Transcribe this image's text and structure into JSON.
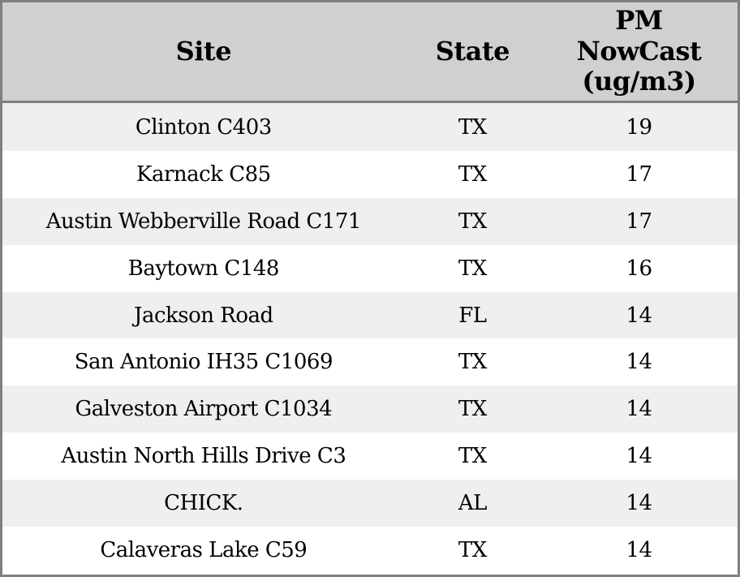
{
  "table": {
    "columns": [
      {
        "id": "site",
        "label": "Site"
      },
      {
        "id": "state",
        "label": "State"
      },
      {
        "id": "pm_nowcast",
        "label": "PM\nNowCast\n(ug/m3)"
      }
    ]
  },
  "chart_data": {
    "type": "table",
    "columns": [
      "Site",
      "State",
      "PM NowCast (ug/m3)"
    ],
    "rows": [
      [
        "Clinton C403",
        "TX",
        19
      ],
      [
        "Karnack C85",
        "TX",
        17
      ],
      [
        "Austin Webberville Road C171",
        "TX",
        17
      ],
      [
        "Baytown C148",
        "TX",
        16
      ],
      [
        "Jackson Road",
        "FL",
        14
      ],
      [
        "San Antonio IH35 C1069",
        "TX",
        14
      ],
      [
        "Galveston Airport C1034",
        "TX",
        14
      ],
      [
        "Austin North Hills Drive C3",
        "TX",
        14
      ],
      [
        "CHICK.",
        "AL",
        14
      ],
      [
        "Calaveras Lake C59",
        "TX",
        14
      ]
    ]
  },
  "colors": {
    "header_bg": "#d0d0d0",
    "row_stripe_bg": "#efefef",
    "row_bg": "#ffffff",
    "border": "#808080",
    "text": "#000000"
  }
}
